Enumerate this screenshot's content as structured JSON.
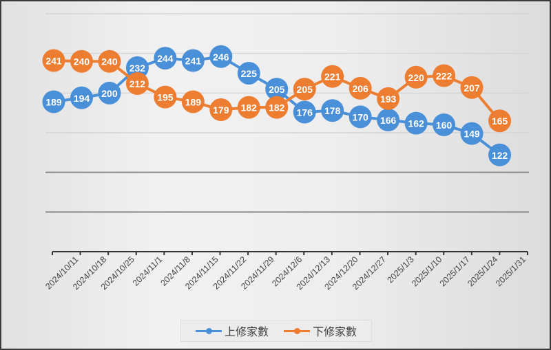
{
  "chart_data": {
    "type": "line",
    "title": "",
    "xlabel": "",
    "ylabel": "",
    "ylim": [
      0,
      300
    ],
    "y_gridlines": [
      50,
      100,
      150,
      200,
      250,
      300
    ],
    "grid": true,
    "y_tick_labels_visible": false,
    "legend_position": "bottom",
    "categories": [
      "2024/10/11",
      "2024/10/18",
      "2024/10/25",
      "2024/11/1",
      "2024/11/8",
      "2024/11/15",
      "2024/11/22",
      "2024/11/29",
      "2024/12/6",
      "2024/12/13",
      "2024/12/20",
      "2024/12/27",
      "2025/1/3",
      "2025/1/10",
      "2025/1/17",
      "2025/1/24",
      "2025/1/31"
    ],
    "x_label_note": "18 tick positions; first category label 2024/10/11 sits at first point, last label 2025/1/31",
    "series": [
      {
        "name": "上修家數",
        "color": "#4a90d9",
        "values": [
          189,
          194,
          200,
          232,
          244,
          241,
          246,
          225,
          205,
          176,
          178,
          170,
          166,
          162,
          160,
          149,
          122
        ]
      },
      {
        "name": "下修家數",
        "color": "#ed7d31",
        "values": [
          241,
          240,
          240,
          212,
          195,
          189,
          179,
          182,
          182,
          205,
          221,
          206,
          193,
          220,
          222,
          207,
          165
        ]
      }
    ]
  },
  "legend": {
    "items": [
      {
        "label": "上修家數",
        "color": "#4a90d9"
      },
      {
        "label": "下修家數",
        "color": "#ed7d31"
      }
    ]
  }
}
